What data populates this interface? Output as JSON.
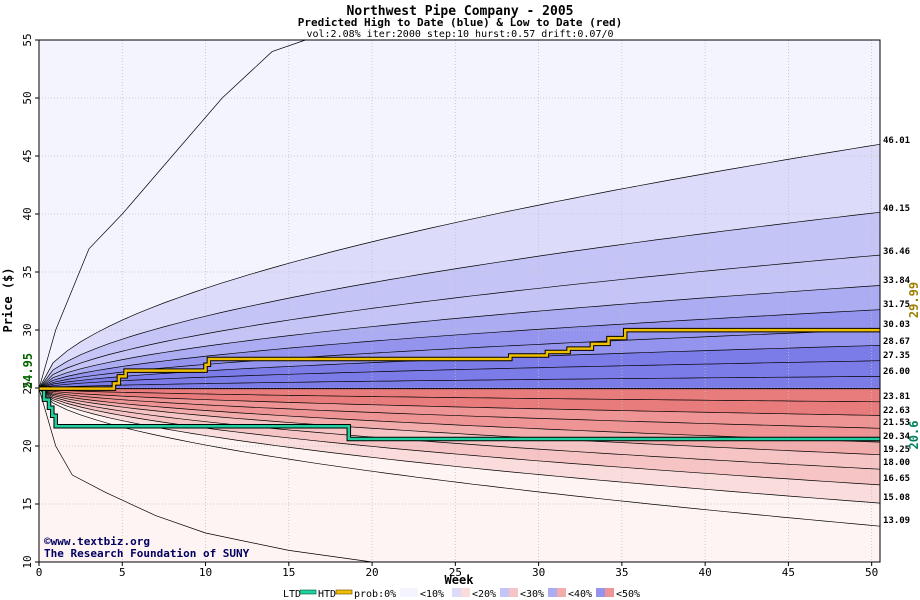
{
  "chart_data": {
    "type": "area",
    "title": "Northwest Pipe Company - 2005",
    "subtitle": "Predicted High to Date (blue) &  Low to Date (red)",
    "params": "vol:2.08% iter:2000 step:10 hurst:0.57 drift:0.07/0",
    "xlabel": "Week",
    "ylabel": "Price ($)",
    "xlim": [
      0,
      50.5
    ],
    "ylim": [
      10,
      55
    ],
    "x_ticks": [
      "0",
      "5",
      "10",
      "15",
      "20",
      "25",
      "30",
      "35",
      "40",
      "45",
      "50"
    ],
    "y_ticks": [
      "10",
      "15",
      "20",
      "25",
      "30",
      "35",
      "40",
      "45",
      "50",
      "55"
    ],
    "grid": true,
    "start_price": 24.95,
    "start_label": "24.95",
    "hi_label": "29.99",
    "lo_label": "20.6",
    "credit_line1": "©www.textbiz.org",
    "credit_line2": "The Research Foundation of SUNY",
    "upper_curves": [
      {
        "label": "46.01",
        "end": 46.01
      },
      {
        "label": "40.15",
        "end": 40.15
      },
      {
        "label": "36.46",
        "end": 36.46
      },
      {
        "label": "33.84",
        "end": 33.84
      },
      {
        "label": "31.75",
        "end": 31.75
      },
      {
        "label": "30.03",
        "end": 30.03
      },
      {
        "label": "28.67",
        "end": 28.67
      },
      {
        "label": "27.35",
        "end": 27.35
      },
      {
        "label": "26.00",
        "end": 26.0
      }
    ],
    "lower_curves": [
      {
        "label": "23.81",
        "end": 23.81
      },
      {
        "label": "22.63",
        "end": 22.63
      },
      {
        "label": "21.53",
        "end": 21.53
      },
      {
        "label": "20.34",
        "end": 20.34
      },
      {
        "label": "19.25",
        "end": 19.25
      },
      {
        "label": "18.00",
        "end": 18.0
      },
      {
        "label": "16.65",
        "end": 16.65
      },
      {
        "label": "15.08",
        "end": 15.08
      },
      {
        "label": "13.09",
        "end": 13.09
      }
    ],
    "outer_upper": {
      "x": [
        0,
        1,
        3,
        5,
        8,
        11,
        14,
        16
      ],
      "y": [
        24.95,
        30,
        37,
        40,
        45,
        50,
        54,
        55
      ]
    },
    "outer_lower": {
      "x": [
        0,
        1,
        2,
        4,
        7,
        10,
        15,
        20
      ],
      "y": [
        24.95,
        20,
        17.5,
        16,
        14,
        12.5,
        11,
        10
      ]
    },
    "htd_series": {
      "name": "HTD",
      "color": "#f0c000",
      "x": [
        0,
        4.5,
        4.5,
        4.8,
        4.8,
        5.2,
        5.2,
        10,
        10,
        10.2,
        10.2,
        28.3,
        28.3,
        30.5,
        30.5,
        31.8,
        31.8,
        33.2,
        33.2,
        34.2,
        34.2,
        35.2,
        35.2,
        50.5
      ],
      "y": [
        24.95,
        24.95,
        25.4,
        25.4,
        26.0,
        26.0,
        26.5,
        26.5,
        27.0,
        27.0,
        27.5,
        27.5,
        27.8,
        27.8,
        28.1,
        28.1,
        28.4,
        28.4,
        28.8,
        28.8,
        29.3,
        29.3,
        29.99,
        29.99
      ]
    },
    "ltd_series": {
      "name": "LTD",
      "color": "#20d0a0",
      "x": [
        0,
        0.3,
        0.3,
        0.6,
        0.6,
        0.8,
        0.8,
        1.0,
        1.0,
        18.6,
        18.6,
        50.5
      ],
      "y": [
        24.95,
        24.95,
        24.0,
        24.0,
        23.3,
        23.3,
        22.6,
        22.6,
        21.7,
        21.7,
        20.6,
        20.6
      ]
    },
    "legend": {
      "ltd": "LTD",
      "htd": "HTD",
      "prob": "prob:0%",
      "items": [
        "<10%",
        "<20%",
        "<30%",
        "<40%",
        "<50%"
      ]
    },
    "band_colors_upper": [
      "#f4f4ff",
      "#dcdcfa",
      "#c4c4f6",
      "#acacf2",
      "#9494ee",
      "#7c7ce8"
    ],
    "band_colors_lower": [
      "#fff4f4",
      "#fadcdc",
      "#f6c4c4",
      "#f2acac",
      "#ee9494",
      "#e87c7c"
    ]
  }
}
